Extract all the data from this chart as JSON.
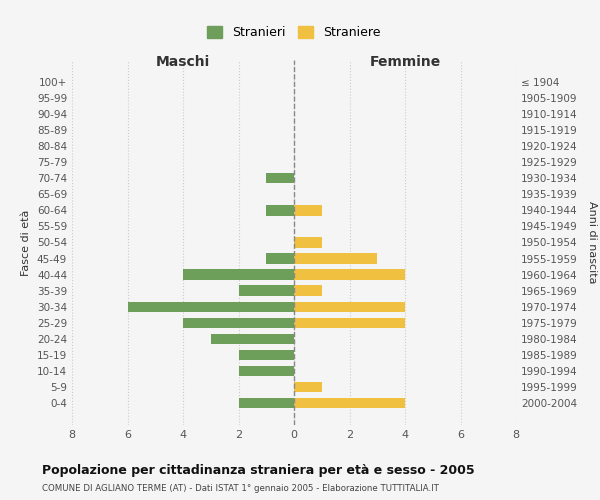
{
  "age_groups": [
    "0-4",
    "5-9",
    "10-14",
    "15-19",
    "20-24",
    "25-29",
    "30-34",
    "35-39",
    "40-44",
    "45-49",
    "50-54",
    "55-59",
    "60-64",
    "65-69",
    "70-74",
    "75-79",
    "80-84",
    "85-89",
    "90-94",
    "95-99",
    "100+"
  ],
  "birth_years": [
    "2000-2004",
    "1995-1999",
    "1990-1994",
    "1985-1989",
    "1980-1984",
    "1975-1979",
    "1970-1974",
    "1965-1969",
    "1960-1964",
    "1955-1959",
    "1950-1954",
    "1945-1949",
    "1940-1944",
    "1935-1939",
    "1930-1934",
    "1925-1929",
    "1920-1924",
    "1915-1919",
    "1910-1914",
    "1905-1909",
    "≤ 1904"
  ],
  "maschi": [
    2,
    0,
    2,
    2,
    3,
    4,
    6,
    2,
    4,
    1,
    0,
    0,
    1,
    0,
    1,
    0,
    0,
    0,
    0,
    0,
    0
  ],
  "femmine": [
    4,
    1,
    0,
    0,
    0,
    4,
    4,
    1,
    4,
    3,
    1,
    0,
    1,
    0,
    0,
    0,
    0,
    0,
    0,
    0,
    0
  ],
  "color_maschi": "#6d9e5a",
  "color_femmine": "#f0c040",
  "title": "Popolazione per cittadinanza straniera per età e sesso - 2005",
  "subtitle": "COMUNE DI AGLIANO TERME (AT) - Dati ISTAT 1° gennaio 2005 - Elaborazione TUTTITALIA.IT",
  "xlabel_left": "Maschi",
  "xlabel_right": "Femmine",
  "ylabel_left": "Fasce di età",
  "ylabel_right": "Anni di nascita",
  "legend_maschi": "Stranieri",
  "legend_femmine": "Straniere",
  "xlim": 8,
  "background_color": "#f5f5f5",
  "grid_color": "#cccccc"
}
